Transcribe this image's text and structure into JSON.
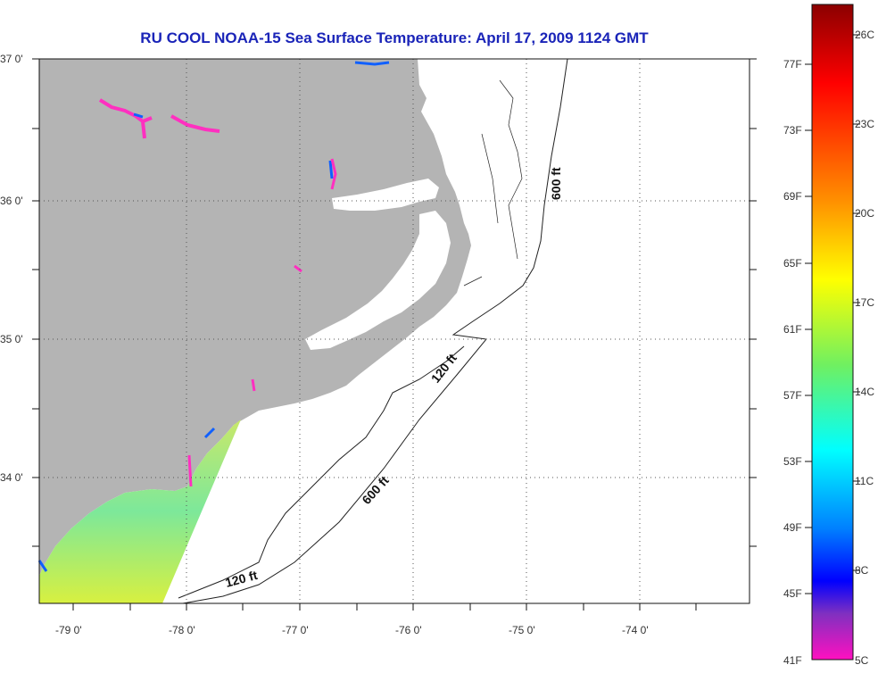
{
  "title": "RU COOL  NOAA-15  Sea Surface Temperature:  April 17, 2009 1124 GMT",
  "map": {
    "lat_labels": [
      "37 0'",
      "36 0'",
      "35 0'",
      "34 0'"
    ],
    "lon_labels": [
      "-79 0'",
      "-78 0'",
      "-77 0'",
      "-76 0'",
      "-75 0'",
      "-74 0'"
    ],
    "contour_labels": [
      "600 ft",
      "120 ft",
      "600 ft",
      "120 ft"
    ],
    "land_color": "#b4b4b4",
    "ocean_color": "#ffffff"
  },
  "colorbar": {
    "celsius_labels": [
      "26C",
      "23C",
      "20C",
      "17C",
      "14C",
      "11C",
      "8C",
      "5C"
    ],
    "fahrenheit_labels": [
      "77F",
      "73F",
      "69F",
      "65F",
      "61F",
      "57F",
      "53F",
      "49F",
      "45F",
      "41F"
    ],
    "colors": [
      "#8b0000",
      "#ff0000",
      "#ff8000",
      "#ffff00",
      "#80ff40",
      "#00ffff",
      "#0080ff",
      "#0000ff",
      "#8000c0",
      "#ff00c0"
    ]
  }
}
